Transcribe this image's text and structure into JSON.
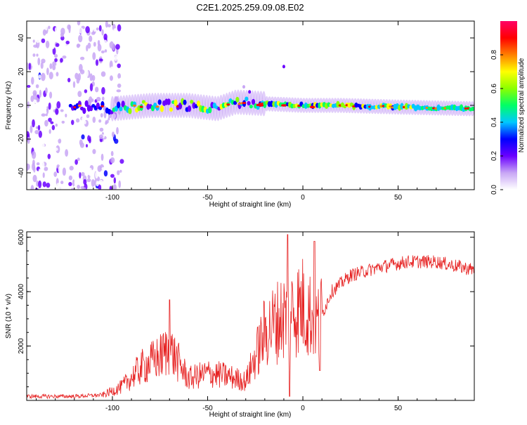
{
  "title": "C2E1.2025.259.09.08.E02",
  "chart_data": [
    {
      "type": "heatmap",
      "xlabel": "Height of straight line (km)",
      "ylabel": "Frequency (Hz)",
      "xlim": [
        -145,
        90
      ],
      "ylim": [
        -50,
        50
      ],
      "xticks": [
        -100,
        -50,
        0,
        50
      ],
      "yticks": [
        -40,
        -20,
        0,
        20,
        40
      ],
      "colorbar": {
        "label": "Normalized spectral amplitude",
        "range": [
          0,
          1
        ],
        "ticks": [
          "0.0",
          "0.2",
          "0.4",
          "0.6",
          "0.8"
        ],
        "colors": [
          "#ffffff",
          "#c8a6f5",
          "#6a00ff",
          "#0000ff",
          "#00c8ff",
          "#00ff66",
          "#8cff00",
          "#ffff00",
          "#ff8000",
          "#ff0000",
          "#ff0066"
        ]
      },
      "ridge": [
        {
          "x": -145,
          "freq": 0
        },
        {
          "x": -120,
          "freq": -1
        },
        {
          "x": -100,
          "freq": -2
        },
        {
          "x": -80,
          "freq": 0
        },
        {
          "x": -60,
          "freq": 0
        },
        {
          "x": -45,
          "freq": -2
        },
        {
          "x": -35,
          "freq": 2
        },
        {
          "x": -20,
          "freq": 1
        },
        {
          "x": 0,
          "freq": 0
        },
        {
          "x": 20,
          "freq": 0
        },
        {
          "x": 50,
          "freq": -1
        },
        {
          "x": 90,
          "freq": -2
        }
      ],
      "grid": false
    },
    {
      "type": "line",
      "xlabel": "Height of straight line (km)",
      "ylabel": "SNR (10 * v/v)",
      "xlim": [
        -145,
        90
      ],
      "ylim": [
        0,
        6200
      ],
      "xticks": [
        -100,
        -50,
        0,
        50
      ],
      "yticks": [
        2000,
        4000,
        6000
      ],
      "color": "#e62020",
      "envelope": [
        {
          "x": -145,
          "y": 150
        },
        {
          "x": -120,
          "y": 150
        },
        {
          "x": -105,
          "y": 200
        },
        {
          "x": -95,
          "y": 500
        },
        {
          "x": -85,
          "y": 1200
        },
        {
          "x": -75,
          "y": 1600
        },
        {
          "x": -70,
          "y": 1900
        },
        {
          "x": -60,
          "y": 800
        },
        {
          "x": -50,
          "y": 1000
        },
        {
          "x": -40,
          "y": 900
        },
        {
          "x": -30,
          "y": 700
        },
        {
          "x": -20,
          "y": 2500
        },
        {
          "x": -12,
          "y": 3000
        },
        {
          "x": -8,
          "y": 3200
        },
        {
          "x": 0,
          "y": 3500
        },
        {
          "x": 8,
          "y": 2800
        },
        {
          "x": 15,
          "y": 4000
        },
        {
          "x": 25,
          "y": 4600
        },
        {
          "x": 40,
          "y": 4900
        },
        {
          "x": 55,
          "y": 5100
        },
        {
          "x": 70,
          "y": 5100
        },
        {
          "x": 90,
          "y": 4800
        }
      ],
      "spikes": [
        {
          "x": -70,
          "y": 3700
        },
        {
          "x": -8,
          "y": 6100
        },
        {
          "x": -7,
          "y": 150
        },
        {
          "x": 6,
          "y": 5850
        },
        {
          "x": 9,
          "y": 1100
        }
      ],
      "grid": false
    }
  ]
}
